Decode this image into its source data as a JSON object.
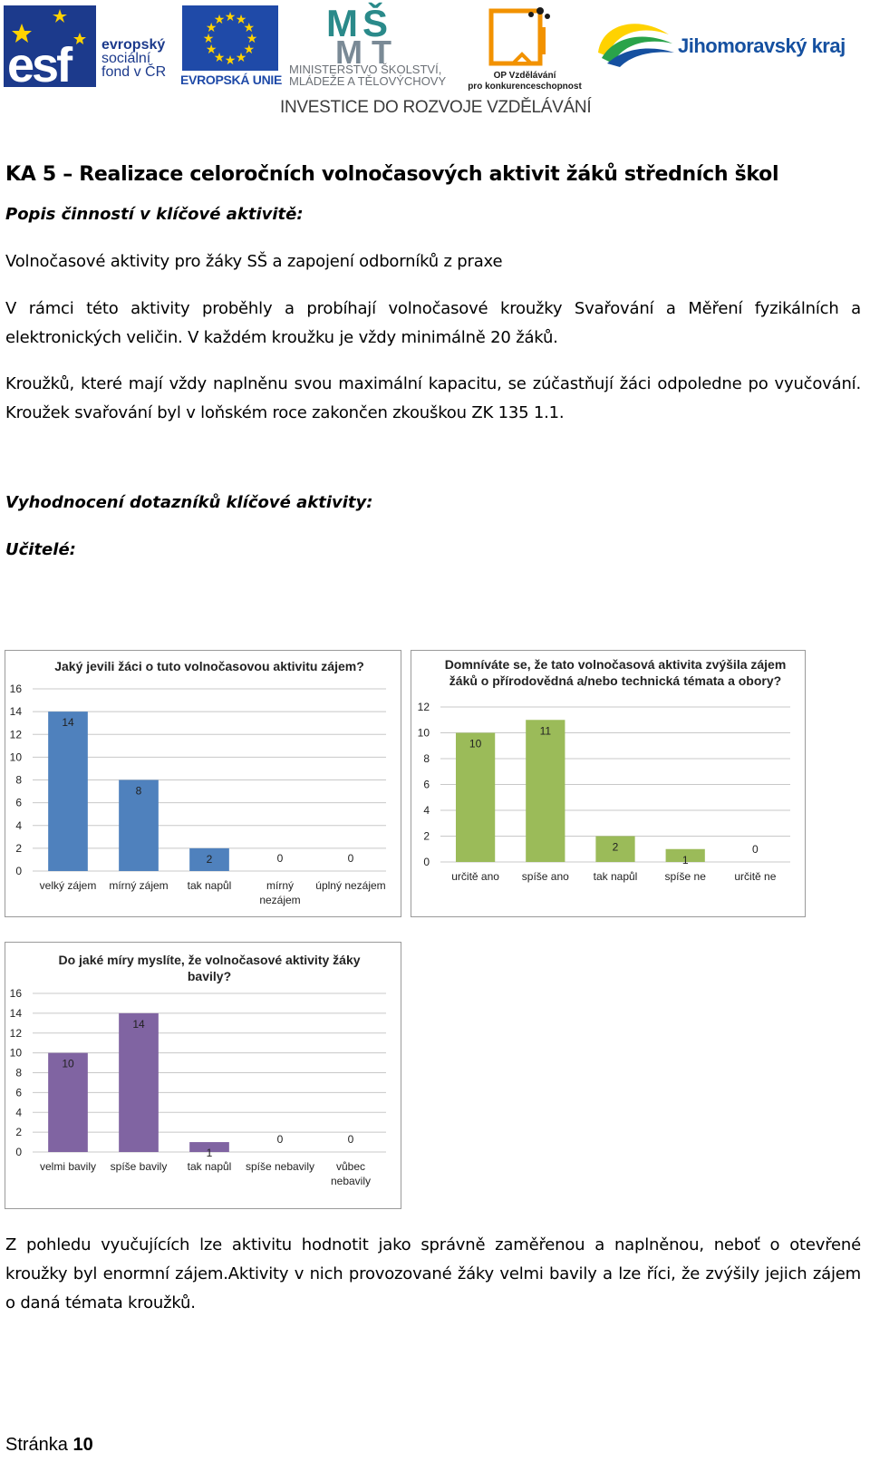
{
  "header": {
    "esf_lines": [
      "evropský",
      "sociální",
      "fond v ČR"
    ],
    "eu_label": "EVROPSKÁ UNIE",
    "msmt_lines": [
      "MINISTERSTVO ŠKOLSTVÍ,",
      "MLÁDEŽE A TĚLOVÝCHOVY"
    ],
    "op_lines": [
      "OP Vzdělávání",
      "pro konkurenceschopnost"
    ],
    "region": "Jihomoravský kraj",
    "tagline": "INVESTICE DO ROZVOJE VZDĚLÁVÁNÍ"
  },
  "document": {
    "heading": "KA 5 – Realizace celoročních volnočasových aktivit žáků středních škol",
    "subheading": "Popis činností v klíčové aktivitě:",
    "para1": "Volnočasové aktivity pro žáky SŠ a zapojení odborníků z praxe",
    "para2": "V rámci této aktivity proběhly a probíhají volnočasové kroužky Svařování a Měření fyzikálních a elektronických veličin. V každém kroužku je vždy minimálně 20 žáků.",
    "para3": "Kroužků, které mají vždy naplněnu svou maximální kapacitu, se zúčastňují žáci odpoledne po vyučování. Kroužek svařování byl v loňském roce zakončen zkouškou ZK 135 1.1.",
    "eval_heading": "Vyhodnocení dotazníků klíčové aktivity:",
    "teachers_heading": "Učitelé:",
    "conclusion": "Z pohledu vyučujících lze aktivitu hodnotit jako správně zaměřenou a naplněnou, neboť o otevřené kroužky byl enormní zájem.Aktivity v nich provozované žáky velmi bavily a lze říci, že zvýšily jejich zájem o daná témata kroužků.",
    "footer_label": "Stránka",
    "footer_page": "10"
  },
  "chart_data": [
    {
      "type": "bar",
      "title": [
        "Jaký jevili žáci o tuto volnočasovou aktivitu zájem?"
      ],
      "categories": [
        [
          "velký zájem"
        ],
        [
          "mírný zájem"
        ],
        [
          "tak napůl"
        ],
        [
          "mírný",
          "nezájem"
        ],
        [
          "úplný nezájem"
        ]
      ],
      "values": [
        14,
        8,
        2,
        0,
        0
      ],
      "ylim": [
        0,
        16
      ],
      "yticks": [
        0,
        2,
        4,
        6,
        8,
        10,
        12,
        14,
        16
      ],
      "color": "#4f81bd",
      "grid": true
    },
    {
      "type": "bar",
      "title": [
        "Domníváte se, že tato volnočasová aktivita zvýšila zájem",
        "žáků o přírodovědná a/nebo technická témata a obory?"
      ],
      "categories": [
        [
          "určitě ano"
        ],
        [
          "spíše ano"
        ],
        [
          "tak napůl"
        ],
        [
          "spíše ne"
        ],
        [
          "určitě ne"
        ]
      ],
      "values": [
        10,
        11,
        2,
        1,
        0
      ],
      "ylim": [
        0,
        12
      ],
      "yticks": [
        0,
        2,
        4,
        6,
        8,
        10,
        12
      ],
      "color": "#9bbb59",
      "grid": true
    },
    {
      "type": "bar",
      "title": [
        "Do jaké míry myslíte, že volnočasové aktivity žáky",
        "bavily?"
      ],
      "categories": [
        [
          "velmi bavily"
        ],
        [
          "spíše bavily"
        ],
        [
          "tak napůl"
        ],
        [
          "spíše nebavily"
        ],
        [
          "vůbec",
          "nebavily"
        ]
      ],
      "values": [
        10,
        14,
        1,
        0,
        0
      ],
      "ylim": [
        0,
        16
      ],
      "yticks": [
        0,
        2,
        4,
        6,
        8,
        10,
        12,
        14,
        16
      ],
      "color": "#8064a2",
      "grid": true
    }
  ]
}
